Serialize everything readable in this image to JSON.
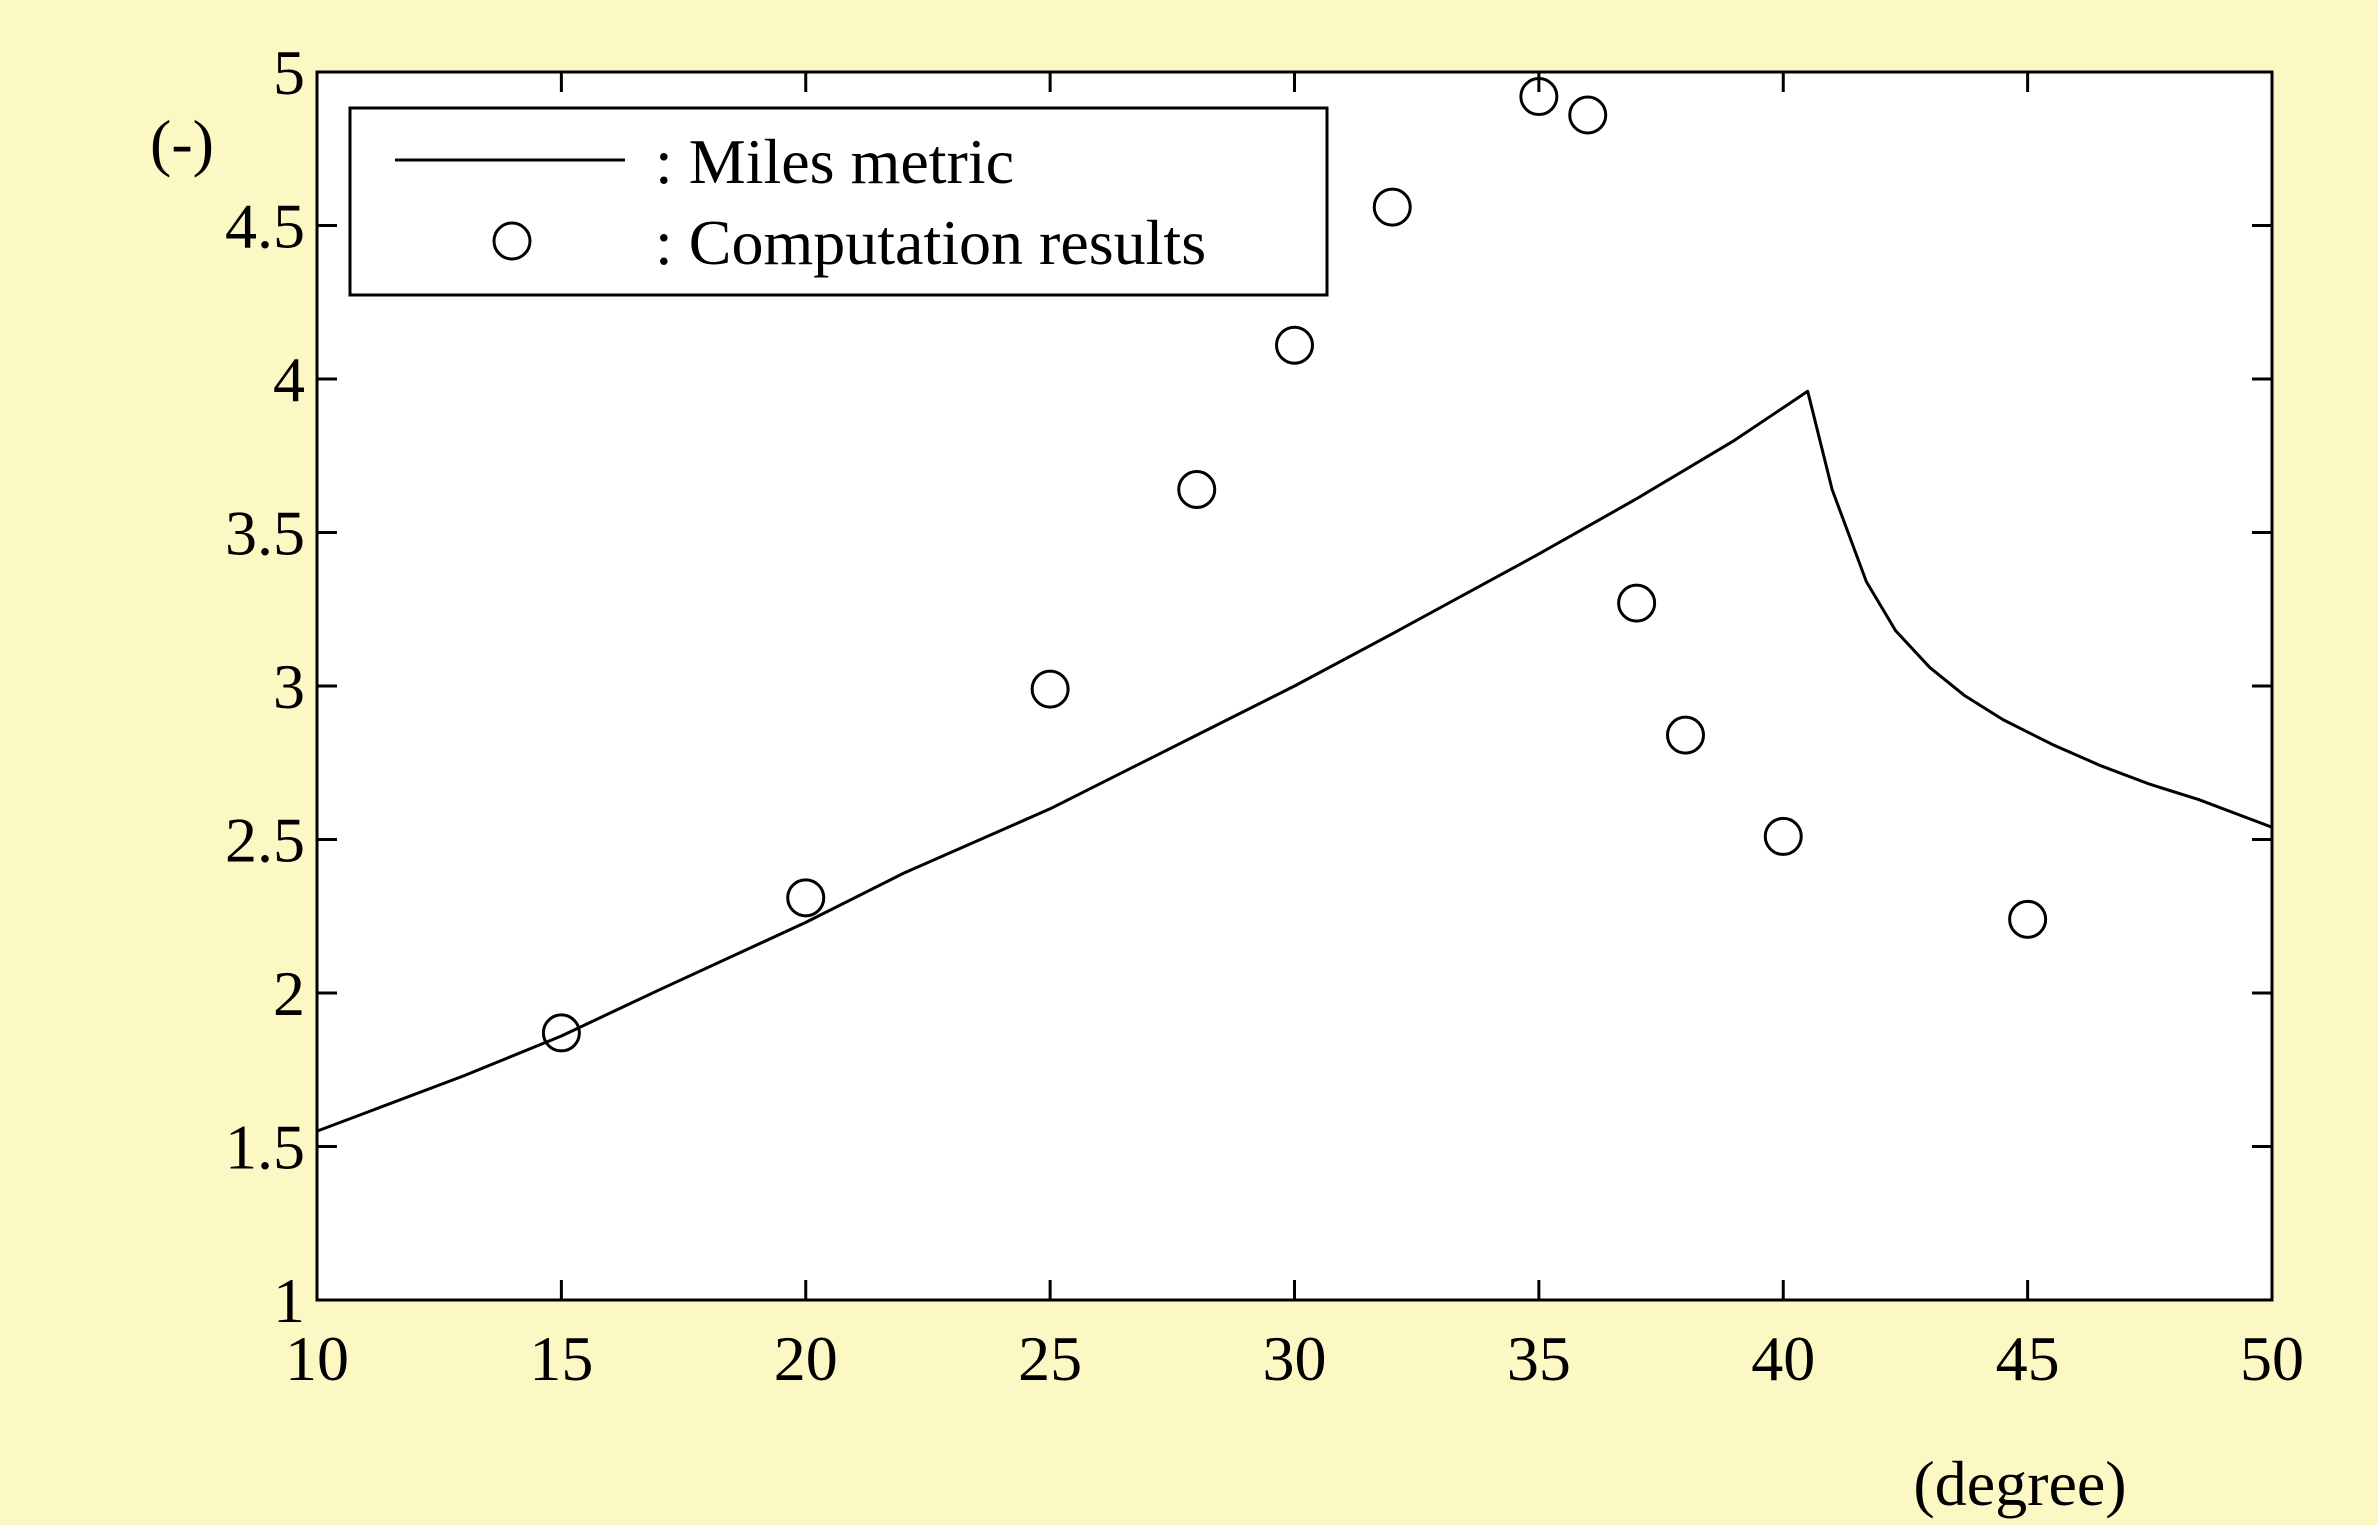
{
  "chart_data": {
    "type": "line",
    "title": "",
    "xlabel": "(degree)",
    "ylabel": "(-)",
    "xlim": [
      10,
      50
    ],
    "ylim": [
      1,
      5
    ],
    "xticks": [
      10,
      15,
      20,
      25,
      30,
      35,
      40,
      45,
      50
    ],
    "yticks": [
      1,
      1.5,
      2,
      2.5,
      3,
      3.5,
      4,
      4.5,
      5
    ],
    "grid": false,
    "legend_position": "top-left",
    "series": [
      {
        "name": ": Miles metric",
        "style": "line",
        "x": [
          10,
          11,
          13,
          15,
          17,
          20,
          22,
          25,
          28,
          30,
          32,
          35,
          37,
          39,
          40.5,
          41,
          41.7,
          42.3,
          43,
          43.7,
          44.5,
          45.5,
          46.5,
          47.5,
          48.5,
          50
        ],
        "y": [
          1.55,
          1.61,
          1.73,
          1.86,
          2.01,
          2.23,
          2.39,
          2.6,
          2.84,
          3.0,
          3.17,
          3.43,
          3.61,
          3.8,
          3.96,
          3.64,
          3.34,
          3.18,
          3.06,
          2.97,
          2.89,
          2.81,
          2.74,
          2.68,
          2.63,
          2.54
        ]
      },
      {
        "name": ": Computation results",
        "style": "markers",
        "x": [
          15,
          20,
          25,
          28,
          30,
          32,
          35,
          36,
          37,
          38,
          40,
          45
        ],
        "y": [
          1.87,
          2.31,
          2.99,
          3.64,
          4.11,
          4.56,
          4.92,
          4.86,
          3.27,
          2.84,
          2.51,
          2.24
        ]
      }
    ]
  }
}
